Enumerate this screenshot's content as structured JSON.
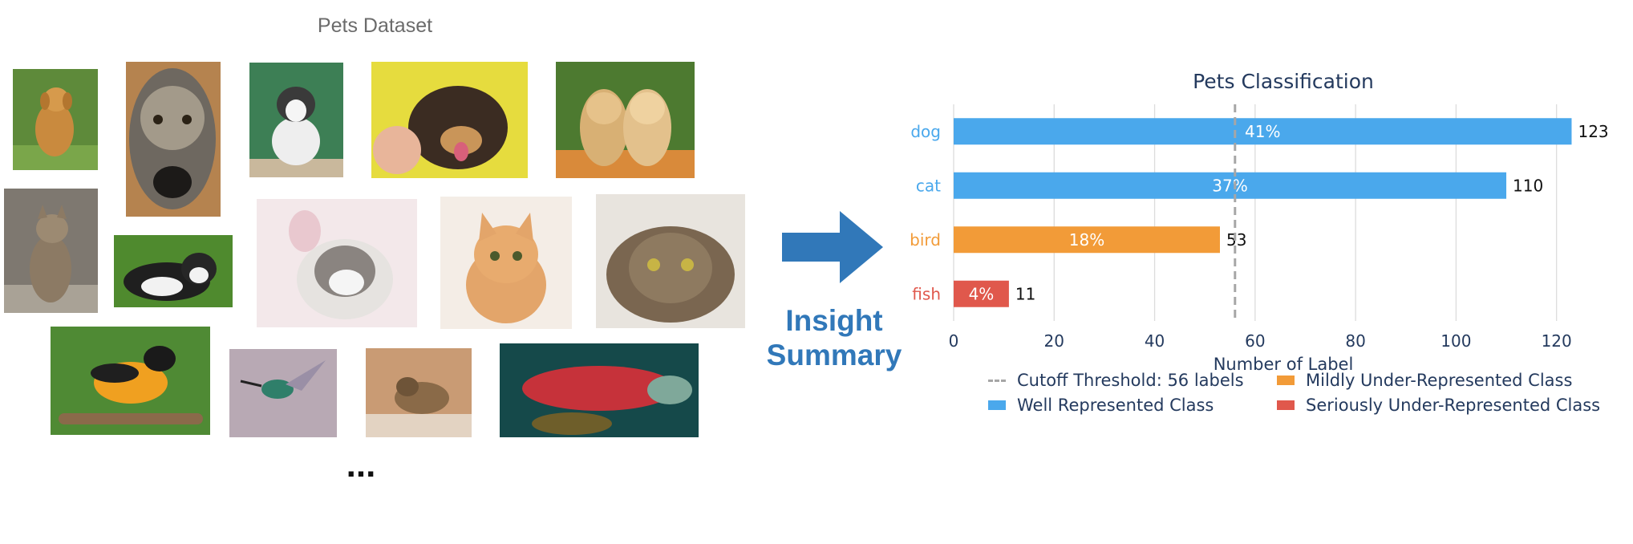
{
  "dataset": {
    "title": "Pets Dataset",
    "ellipsis": "...",
    "images": [
      {
        "name": "photo-golden-retriever"
      },
      {
        "name": "photo-terrier-closeup"
      },
      {
        "name": "photo-husky-puppy"
      },
      {
        "name": "photo-happy-dog"
      },
      {
        "name": "photo-golden-puppies"
      },
      {
        "name": "photo-tabby-kitten"
      },
      {
        "name": "photo-black-white-cat"
      },
      {
        "name": "photo-fluffy-kitten"
      },
      {
        "name": "photo-orange-kitten"
      },
      {
        "name": "photo-tabby-cat"
      },
      {
        "name": "photo-oriole-bird"
      },
      {
        "name": "photo-hummingbird"
      },
      {
        "name": "photo-sparrow"
      },
      {
        "name": "photo-salmon-fish"
      }
    ]
  },
  "arrow": {
    "label_line1": "Insight",
    "label_line2": "Summary",
    "color": "#3178b9"
  },
  "chart_data": {
    "type": "bar",
    "orientation": "horizontal",
    "title": "Pets Classification",
    "xlabel": "Number of Label",
    "ylabel": "",
    "xlim": [
      0,
      125
    ],
    "xticks": [
      0,
      20,
      40,
      60,
      80,
      100,
      120
    ],
    "grid": true,
    "categories": [
      "dog",
      "cat",
      "bird",
      "fish"
    ],
    "values": [
      123,
      110,
      53,
      11
    ],
    "percent_labels": [
      "41%",
      "37%",
      "18%",
      "4%"
    ],
    "bar_colors": [
      "#4aa8ec",
      "#4aa8ec",
      "#f29b38",
      "#e0584c"
    ],
    "category_label_colors": [
      "#4aa8ec",
      "#4aa8ec",
      "#f29b38",
      "#e0584c"
    ],
    "threshold": {
      "value": 56,
      "label": "Cutoff Threshold: 56 labels",
      "color": "#a6a6a6"
    },
    "legend": {
      "placement": "bottom",
      "items": [
        {
          "label": "Cutoff Threshold: 56 labels",
          "kind": "dash",
          "color": "#a6a6a6"
        },
        {
          "label": "Mildly Under-Represented Class",
          "kind": "box",
          "color": "#f29b38"
        },
        {
          "label": "Well Represented Class",
          "kind": "box",
          "color": "#4aa8ec"
        },
        {
          "label": "Seriously Under-Represented Class",
          "kind": "box",
          "color": "#e0584c"
        }
      ]
    }
  }
}
